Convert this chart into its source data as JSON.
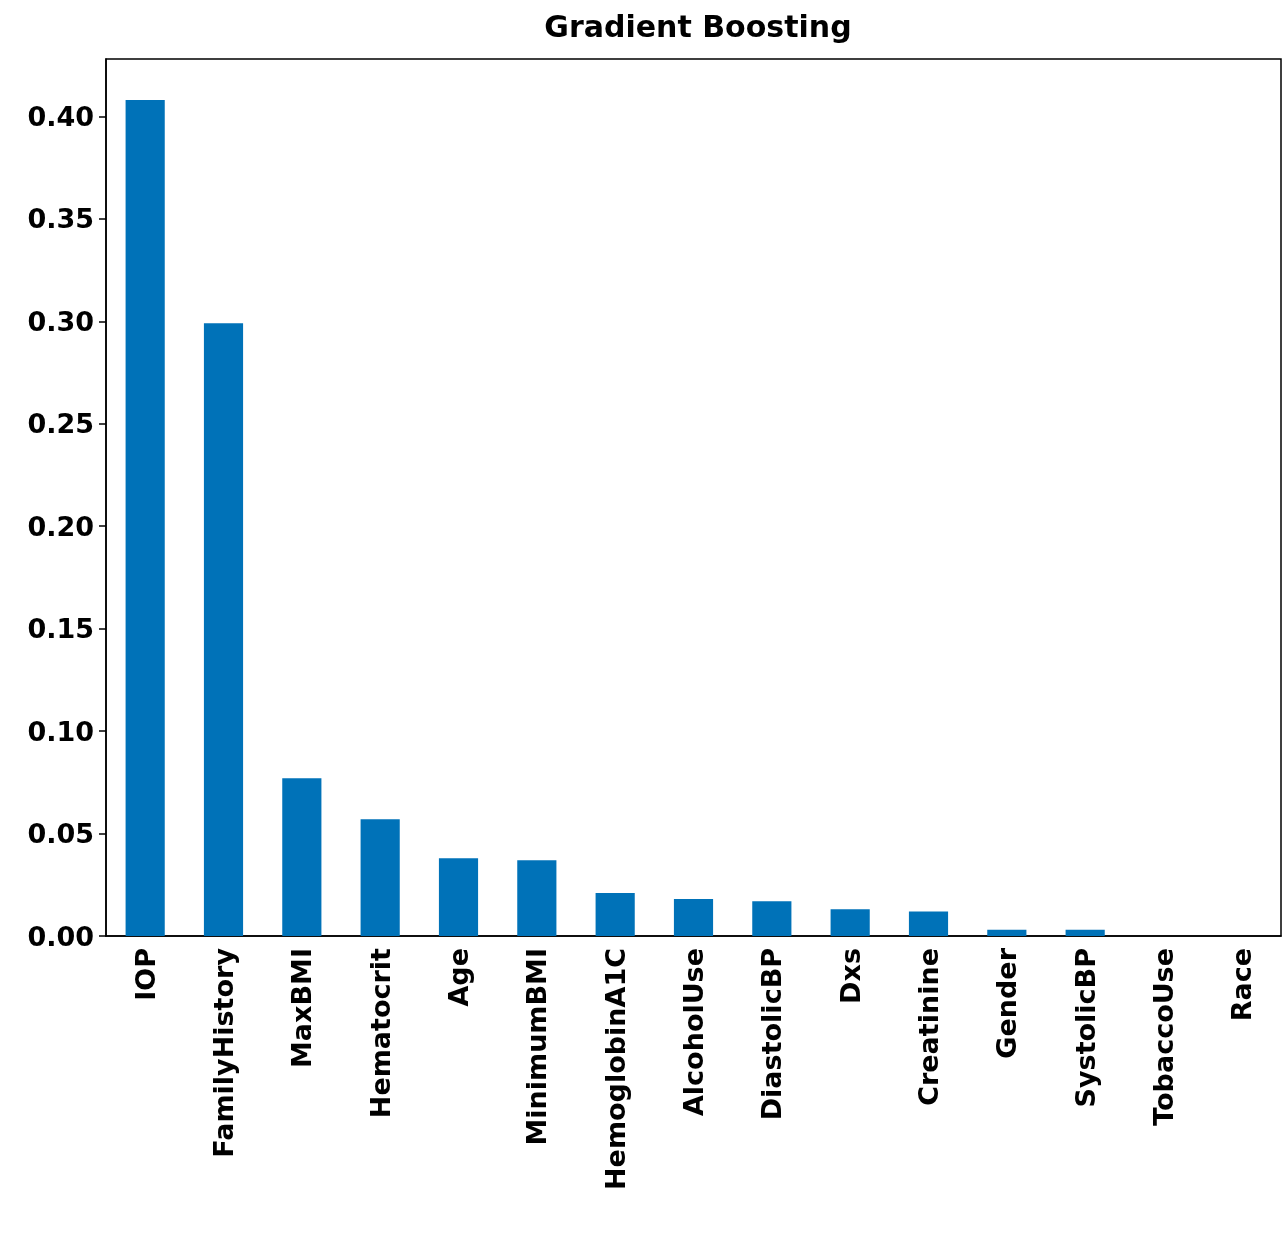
{
  "chart_data": {
    "type": "bar",
    "title": "Gradient Boosting",
    "categories": [
      "IOP",
      "FamilyHistory",
      "MaxBMI",
      "Hematocrit",
      "Age",
      "MinimumBMI",
      "HemoglobinA1C",
      "AlcoholUse",
      "DiastolicBP",
      "Dxs",
      "Creatinine",
      "Gender",
      "SystolicBP",
      "TobaccoUse",
      "Race"
    ],
    "values": [
      0.408,
      0.299,
      0.077,
      0.057,
      0.038,
      0.037,
      0.021,
      0.018,
      0.017,
      0.013,
      0.012,
      0.003,
      0.003,
      0,
      0
    ],
    "color": "#0072b8",
    "ylim": [
      0,
      0.428
    ],
    "yticks": [
      {
        "value": 0,
        "label": "0.00"
      },
      {
        "value": 0.05,
        "label": "0.05"
      },
      {
        "value": 0.1,
        "label": "0.10"
      },
      {
        "value": 0.15,
        "label": "0.15"
      },
      {
        "value": 0.2,
        "label": "0.20"
      },
      {
        "value": 0.25,
        "label": "0.25"
      },
      {
        "value": 0.3,
        "label": "0.30"
      },
      {
        "value": 0.35,
        "label": "0.35"
      },
      {
        "value": 0.4,
        "label": "0.40"
      }
    ],
    "grid": false
  }
}
